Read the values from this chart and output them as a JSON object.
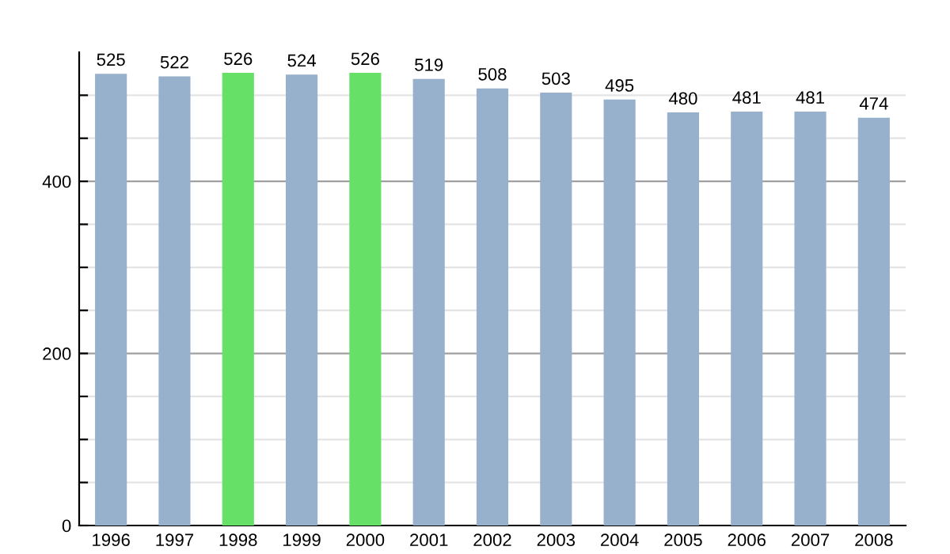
{
  "chart_data": {
    "type": "bar",
    "categories": [
      "1996",
      "1997",
      "1998",
      "1999",
      "2000",
      "2001",
      "2002",
      "2003",
      "2004",
      "2005",
      "2006",
      "2007",
      "2008"
    ],
    "values": [
      525,
      522,
      526,
      524,
      526,
      519,
      508,
      503,
      495,
      480,
      481,
      481,
      474
    ],
    "colors": [
      "#97b0cc",
      "#97b0cc",
      "#66e066",
      "#97b0cc",
      "#66e066",
      "#97b0cc",
      "#97b0cc",
      "#97b0cc",
      "#97b0cc",
      "#97b0cc",
      "#97b0cc",
      "#97b0cc",
      "#97b0cc"
    ],
    "data_labels": true,
    "ylim": [
      0,
      550
    ],
    "yticks": [
      0,
      {
        "value": 50,
        "label": null
      },
      {
        "value": 100,
        "label": null
      },
      {
        "value": 150,
        "label": null
      },
      200,
      {
        "value": 250,
        "label": null
      },
      {
        "value": 300,
        "label": null
      },
      {
        "value": 350,
        "label": null
      },
      400,
      {
        "value": 450,
        "label": null
      },
      {
        "value": 500,
        "label": null
      }
    ],
    "grid": "y"
  }
}
